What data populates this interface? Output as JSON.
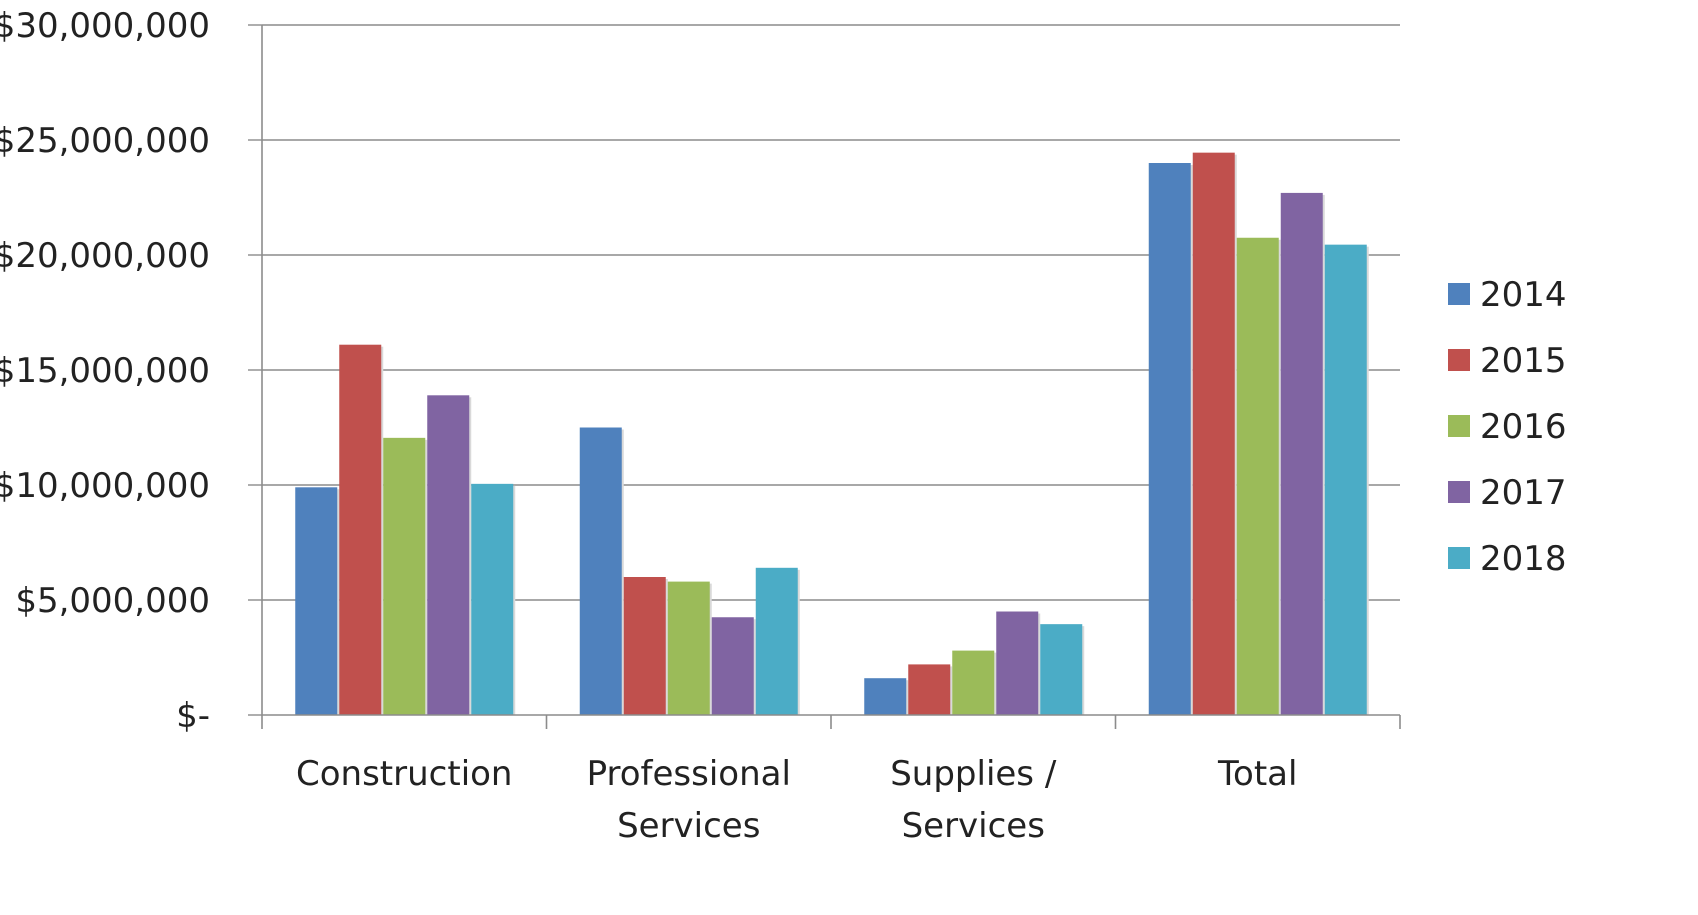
{
  "chart_data": {
    "type": "bar",
    "title": "",
    "xlabel": "",
    "ylabel": "",
    "categories": [
      [
        "Construction"
      ],
      [
        "Professional",
        "Services"
      ],
      [
        "Supplies /",
        "Services"
      ],
      [
        "Total"
      ]
    ],
    "series": [
      {
        "name": "2014",
        "color": "#4F81BD",
        "values": [
          9900000,
          12500000,
          1600000,
          24000000
        ]
      },
      {
        "name": "2015",
        "color": "#C0504D",
        "values": [
          16100000,
          6000000,
          2200000,
          24450000
        ]
      },
      {
        "name": "2016",
        "color": "#9BBB59",
        "values": [
          12050000,
          5800000,
          2800000,
          20750000
        ]
      },
      {
        "name": "2017",
        "color": "#8064A2",
        "values": [
          13900000,
          4250000,
          4500000,
          22700000
        ]
      },
      {
        "name": "2018",
        "color": "#4BACC6",
        "values": [
          10050000,
          6400000,
          3950000,
          20450000
        ]
      }
    ],
    "y_ticks": [
      {
        "value": 0,
        "label": "$-"
      },
      {
        "value": 5000000,
        "label": "$5,000,000"
      },
      {
        "value": 10000000,
        "label": "$10,000,000"
      },
      {
        "value": 15000000,
        "label": "$15,000,000"
      },
      {
        "value": 20000000,
        "label": "$20,000,000"
      },
      {
        "value": 25000000,
        "label": "$25,000,000"
      },
      {
        "value": 30000000,
        "label": "$30,000,000"
      }
    ],
    "ylim": [
      0,
      30000000
    ],
    "grid": true,
    "legend_position": "right"
  }
}
